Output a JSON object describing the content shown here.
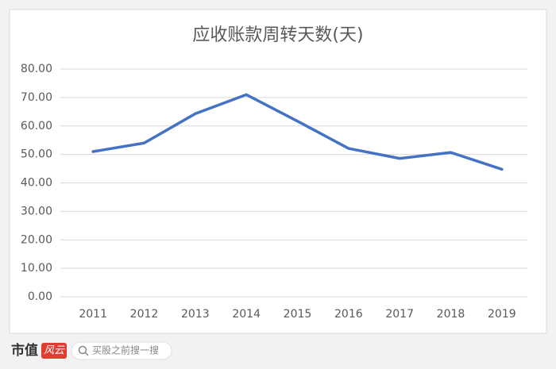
{
  "chart_data": {
    "type": "line",
    "title": "应收账款周转天数(天)",
    "categories": [
      "2011",
      "2012",
      "2013",
      "2014",
      "2015",
      "2016",
      "2017",
      "2018",
      "2019"
    ],
    "values": [
      51.0,
      54.0,
      64.3,
      71.0,
      61.7,
      52.1,
      48.6,
      50.7,
      44.8
    ],
    "color": "#4472c4",
    "ylim": [
      0,
      80
    ],
    "yticks": [
      {
        "value": 0,
        "label": "0.00"
      },
      {
        "value": 10,
        "label": "10.00"
      },
      {
        "value": 20,
        "label": "20.00"
      },
      {
        "value": 30,
        "label": "30.00"
      },
      {
        "value": 40,
        "label": "40.00"
      },
      {
        "value": 50,
        "label": "50.00"
      },
      {
        "value": 60,
        "label": "60.00"
      },
      {
        "value": 70,
        "label": "70.00"
      },
      {
        "value": 80,
        "label": "80.00"
      }
    ],
    "grid": true
  },
  "footer": {
    "brand": "市值",
    "brand_tag": "风云",
    "search": "买股之前搜一搜"
  }
}
